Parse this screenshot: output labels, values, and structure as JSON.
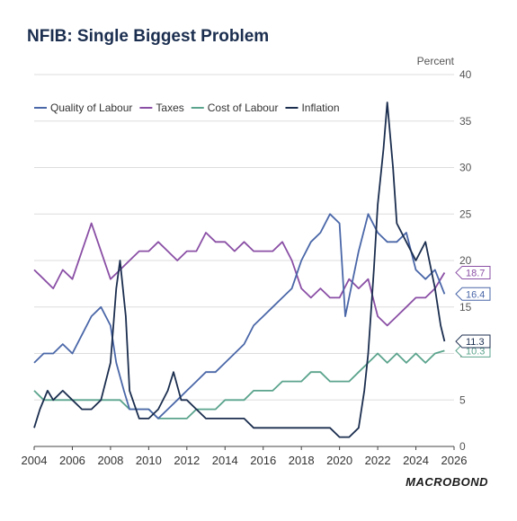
{
  "title": "NFIB: Single Biggest Problem",
  "logo": "MACROBOND",
  "chart_data": {
    "type": "line",
    "title": "NFIB: Single Biggest Problem",
    "ylabel": "Percent",
    "xlim": [
      2004,
      2026
    ],
    "ylim": [
      0,
      40
    ],
    "x_ticks": [
      2004,
      2006,
      2008,
      2010,
      2012,
      2014,
      2016,
      2018,
      2020,
      2022,
      2024,
      2026
    ],
    "y_ticks": [
      0,
      5,
      10,
      15,
      20,
      25,
      30,
      35,
      40
    ],
    "grid": "horizontal",
    "legend": "top-left",
    "series": [
      {
        "name": "Quality of Labour",
        "color": "#4a67a8",
        "end_label": "16.4",
        "points": [
          [
            2004,
            9
          ],
          [
            2004.5,
            10
          ],
          [
            2005,
            10
          ],
          [
            2005.5,
            11
          ],
          [
            2006,
            10
          ],
          [
            2006.5,
            12
          ],
          [
            2007,
            14
          ],
          [
            2007.5,
            15
          ],
          [
            2008,
            13
          ],
          [
            2008.3,
            9
          ],
          [
            2008.7,
            6
          ],
          [
            2009,
            4
          ],
          [
            2009.5,
            4
          ],
          [
            2010,
            4
          ],
          [
            2010.5,
            3
          ],
          [
            2011,
            4
          ],
          [
            2011.5,
            5
          ],
          [
            2012,
            6
          ],
          [
            2012.5,
            7
          ],
          [
            2013,
            8
          ],
          [
            2013.5,
            8
          ],
          [
            2014,
            9
          ],
          [
            2014.5,
            10
          ],
          [
            2015,
            11
          ],
          [
            2015.5,
            13
          ],
          [
            2016,
            14
          ],
          [
            2016.5,
            15
          ],
          [
            2017,
            16
          ],
          [
            2017.5,
            17
          ],
          [
            2018,
            20
          ],
          [
            2018.5,
            22
          ],
          [
            2019,
            23
          ],
          [
            2019.5,
            25
          ],
          [
            2020,
            24
          ],
          [
            2020.3,
            14
          ],
          [
            2020.7,
            18
          ],
          [
            2021,
            21
          ],
          [
            2021.5,
            25
          ],
          [
            2022,
            23
          ],
          [
            2022.5,
            22
          ],
          [
            2023,
            22
          ],
          [
            2023.5,
            23
          ],
          [
            2024,
            19
          ],
          [
            2024.5,
            18
          ],
          [
            2025,
            19
          ],
          [
            2025.5,
            16.4
          ]
        ]
      },
      {
        "name": "Taxes",
        "color": "#8a4fa5",
        "end_label": "18.7",
        "points": [
          [
            2004,
            19
          ],
          [
            2004.5,
            18
          ],
          [
            2005,
            17
          ],
          [
            2005.5,
            19
          ],
          [
            2006,
            18
          ],
          [
            2006.5,
            21
          ],
          [
            2007,
            24
          ],
          [
            2007.5,
            21
          ],
          [
            2008,
            18
          ],
          [
            2008.5,
            19
          ],
          [
            2009,
            20
          ],
          [
            2009.5,
            21
          ],
          [
            2010,
            21
          ],
          [
            2010.5,
            22
          ],
          [
            2011,
            21
          ],
          [
            2011.5,
            20
          ],
          [
            2012,
            21
          ],
          [
            2012.5,
            21
          ],
          [
            2013,
            23
          ],
          [
            2013.5,
            22
          ],
          [
            2014,
            22
          ],
          [
            2014.5,
            21
          ],
          [
            2015,
            22
          ],
          [
            2015.5,
            21
          ],
          [
            2016,
            21
          ],
          [
            2016.5,
            21
          ],
          [
            2017,
            22
          ],
          [
            2017.5,
            20
          ],
          [
            2018,
            17
          ],
          [
            2018.5,
            16
          ],
          [
            2019,
            17
          ],
          [
            2019.5,
            16
          ],
          [
            2020,
            16
          ],
          [
            2020.5,
            18
          ],
          [
            2021,
            17
          ],
          [
            2021.5,
            18
          ],
          [
            2022,
            14
          ],
          [
            2022.5,
            13
          ],
          [
            2023,
            14
          ],
          [
            2023.5,
            15
          ],
          [
            2024,
            16
          ],
          [
            2024.5,
            16
          ],
          [
            2025,
            17
          ],
          [
            2025.5,
            18.7
          ]
        ]
      },
      {
        "name": "Cost of Labour",
        "color": "#5aa38c",
        "end_label": "10.3",
        "points": [
          [
            2004,
            6
          ],
          [
            2004.5,
            5
          ],
          [
            2005,
            5
          ],
          [
            2005.5,
            5
          ],
          [
            2006,
            5
          ],
          [
            2006.5,
            5
          ],
          [
            2007,
            5
          ],
          [
            2007.5,
            5
          ],
          [
            2008,
            5
          ],
          [
            2008.5,
            5
          ],
          [
            2009,
            4
          ],
          [
            2009.5,
            4
          ],
          [
            2010,
            4
          ],
          [
            2010.5,
            3
          ],
          [
            2011,
            3
          ],
          [
            2011.5,
            3
          ],
          [
            2012,
            3
          ],
          [
            2012.5,
            4
          ],
          [
            2013,
            4
          ],
          [
            2013.5,
            4
          ],
          [
            2014,
            5
          ],
          [
            2014.5,
            5
          ],
          [
            2015,
            5
          ],
          [
            2015.5,
            6
          ],
          [
            2016,
            6
          ],
          [
            2016.5,
            6
          ],
          [
            2017,
            7
          ],
          [
            2017.5,
            7
          ],
          [
            2018,
            7
          ],
          [
            2018.5,
            8
          ],
          [
            2019,
            8
          ],
          [
            2019.5,
            7
          ],
          [
            2020,
            7
          ],
          [
            2020.5,
            7
          ],
          [
            2021,
            8
          ],
          [
            2021.5,
            9
          ],
          [
            2022,
            10
          ],
          [
            2022.5,
            9
          ],
          [
            2023,
            10
          ],
          [
            2023.5,
            9
          ],
          [
            2024,
            10
          ],
          [
            2024.5,
            9
          ],
          [
            2025,
            10
          ],
          [
            2025.5,
            10.3
          ]
        ]
      },
      {
        "name": "Inflation",
        "color": "#1b2e4f",
        "end_label": "11.3",
        "points": [
          [
            2004,
            2
          ],
          [
            2004.3,
            4
          ],
          [
            2004.7,
            6
          ],
          [
            2005,
            5
          ],
          [
            2005.5,
            6
          ],
          [
            2006,
            5
          ],
          [
            2006.5,
            4
          ],
          [
            2007,
            4
          ],
          [
            2007.5,
            5
          ],
          [
            2008,
            9
          ],
          [
            2008.3,
            17
          ],
          [
            2008.5,
            20
          ],
          [
            2008.8,
            14
          ],
          [
            2009,
            6
          ],
          [
            2009.5,
            3
          ],
          [
            2010,
            3
          ],
          [
            2010.5,
            4
          ],
          [
            2011,
            6
          ],
          [
            2011.3,
            8
          ],
          [
            2011.7,
            5
          ],
          [
            2012,
            5
          ],
          [
            2012.5,
            4
          ],
          [
            2013,
            3
          ],
          [
            2013.5,
            3
          ],
          [
            2014,
            3
          ],
          [
            2014.5,
            3
          ],
          [
            2015,
            3
          ],
          [
            2015.5,
            2
          ],
          [
            2016,
            2
          ],
          [
            2016.5,
            2
          ],
          [
            2017,
            2
          ],
          [
            2017.5,
            2
          ],
          [
            2018,
            2
          ],
          [
            2018.5,
            2
          ],
          [
            2019,
            2
          ],
          [
            2019.5,
            2
          ],
          [
            2020,
            1
          ],
          [
            2020.5,
            1
          ],
          [
            2021,
            2
          ],
          [
            2021.3,
            6
          ],
          [
            2021.5,
            10
          ],
          [
            2021.8,
            19
          ],
          [
            2022,
            26
          ],
          [
            2022.3,
            32
          ],
          [
            2022.5,
            37
          ],
          [
            2022.8,
            30
          ],
          [
            2023,
            24
          ],
          [
            2023.5,
            22
          ],
          [
            2024,
            20
          ],
          [
            2024.5,
            22
          ],
          [
            2025,
            17
          ],
          [
            2025.3,
            13
          ],
          [
            2025.5,
            11.3
          ]
        ]
      }
    ]
  }
}
